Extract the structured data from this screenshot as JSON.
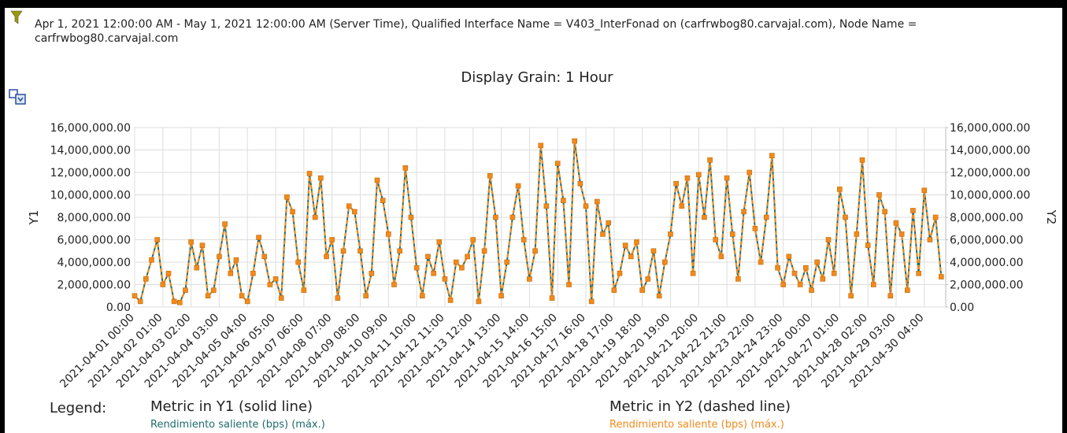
{
  "header": {
    "filter": "Apr 1, 2021 12:00:00 AM - May 1, 2021 12:00:00 AM (Server Time), Qualified Interface Name = V403_InterFonad on (carfrwbog80.carvajal.com), Node Name = carfrwbog80.carvajal.com"
  },
  "chart_data": {
    "type": "line",
    "title": "Display Grain: 1 Hour",
    "y_label": "Y1",
    "y2_label": "Y2",
    "legend": {
      "title": "Legend:",
      "headings": [
        "Metric in Y1 (solid line)",
        "Metric in Y2 (dashed line)"
      ]
    },
    "x": [
      "2021-04-01 00:00",
      "2021-04-01 05:00",
      "2021-04-01 10:00",
      "2021-04-01 15:00",
      "2021-04-01 20:00",
      "2021-04-02 01:00",
      "2021-04-02 06:00",
      "2021-04-02 11:00",
      "2021-04-02 16:00",
      "2021-04-02 21:00",
      "2021-04-03 02:00",
      "2021-04-03 07:00",
      "2021-04-03 12:00",
      "2021-04-03 17:00",
      "2021-04-03 22:00",
      "2021-04-04 03:00",
      "2021-04-04 08:00",
      "2021-04-04 13:00",
      "2021-04-04 18:00",
      "2021-04-04 23:00",
      "2021-04-05 04:00",
      "2021-04-05 09:00",
      "2021-04-05 14:00",
      "2021-04-05 19:00",
      "2021-04-06 00:00",
      "2021-04-06 05:00",
      "2021-04-06 10:00",
      "2021-04-06 15:00",
      "2021-04-06 20:00",
      "2021-04-07 01:00",
      "2021-04-07 06:00",
      "2021-04-07 11:00",
      "2021-04-07 16:00",
      "2021-04-07 21:00",
      "2021-04-08 02:00",
      "2021-04-08 07:00",
      "2021-04-08 12:00",
      "2021-04-08 17:00",
      "2021-04-08 22:00",
      "2021-04-09 03:00",
      "2021-04-09 08:00",
      "2021-04-09 13:00",
      "2021-04-09 18:00",
      "2021-04-09 23:00",
      "2021-04-10 04:00",
      "2021-04-10 09:00",
      "2021-04-10 14:00",
      "2021-04-10 19:00",
      "2021-04-11 00:00",
      "2021-04-11 05:00",
      "2021-04-11 10:00",
      "2021-04-11 15:00",
      "2021-04-11 20:00",
      "2021-04-12 01:00",
      "2021-04-12 06:00",
      "2021-04-12 11:00",
      "2021-04-12 16:00",
      "2021-04-12 21:00",
      "2021-04-13 02:00",
      "2021-04-13 07:00",
      "2021-04-13 12:00",
      "2021-04-13 17:00",
      "2021-04-13 22:00",
      "2021-04-14 03:00",
      "2021-04-14 08:00",
      "2021-04-14 13:00",
      "2021-04-14 18:00",
      "2021-04-14 23:00",
      "2021-04-15 04:00",
      "2021-04-15 09:00",
      "2021-04-15 14:00",
      "2021-04-15 19:00",
      "2021-04-16 00:00",
      "2021-04-16 05:00",
      "2021-04-16 10:00",
      "2021-04-16 15:00",
      "2021-04-16 20:00",
      "2021-04-17 01:00",
      "2021-04-17 06:00",
      "2021-04-17 11:00",
      "2021-04-17 16:00",
      "2021-04-17 21:00",
      "2021-04-18 02:00",
      "2021-04-18 07:00",
      "2021-04-18 12:00",
      "2021-04-18 17:00",
      "2021-04-18 22:00",
      "2021-04-19 03:00",
      "2021-04-19 08:00",
      "2021-04-19 13:00",
      "2021-04-19 18:00",
      "2021-04-19 23:00",
      "2021-04-20 04:00",
      "2021-04-20 09:00",
      "2021-04-20 14:00",
      "2021-04-20 19:00",
      "2021-04-21 00:00",
      "2021-04-21 05:00",
      "2021-04-21 10:00",
      "2021-04-21 15:00",
      "2021-04-21 20:00",
      "2021-04-22 01:00",
      "2021-04-22 06:00",
      "2021-04-22 11:00",
      "2021-04-22 16:00",
      "2021-04-22 21:00",
      "2021-04-23 02:00",
      "2021-04-23 07:00",
      "2021-04-23 12:00",
      "2021-04-23 17:00",
      "2021-04-23 22:00",
      "2021-04-24 03:00",
      "2021-04-24 08:00",
      "2021-04-24 13:00",
      "2021-04-24 18:00",
      "2021-04-24 23:00",
      "2021-04-25 04:00",
      "2021-04-25 09:00",
      "2021-04-25 14:00",
      "2021-04-25 19:00",
      "2021-04-26 00:00",
      "2021-04-26 05:00",
      "2021-04-26 10:00",
      "2021-04-26 15:00",
      "2021-04-26 20:00",
      "2021-04-27 01:00",
      "2021-04-27 06:00",
      "2021-04-27 11:00",
      "2021-04-27 16:00",
      "2021-04-27 21:00",
      "2021-04-28 02:00",
      "2021-04-28 07:00",
      "2021-04-28 12:00",
      "2021-04-28 17:00",
      "2021-04-28 22:00",
      "2021-04-29 03:00",
      "2021-04-29 08:00",
      "2021-04-29 13:00",
      "2021-04-29 18:00",
      "2021-04-29 23:00",
      "2021-04-30 04:00",
      "2021-04-30 09:00",
      "2021-04-30 14:00",
      "2021-04-30 19:00"
    ],
    "series": [
      {
        "name": "Rendimiento saliente (bps) (máx.)",
        "color": "#1f6b6b",
        "axis": "y",
        "dashed": false,
        "markers": false,
        "values": [
          1000000,
          500000,
          2500000,
          4200000,
          6000000,
          2000000,
          3000000,
          500000,
          400000,
          1500000,
          5800000,
          3500000,
          5500000,
          1000000,
          1500000,
          4500000,
          7400000,
          3000000,
          4200000,
          1000000,
          500000,
          3000000,
          6200000,
          4500000,
          2000000,
          2500000,
          800000,
          9800000,
          8500000,
          4000000,
          1500000,
          11900000,
          8000000,
          11500000,
          4500000,
          6000000,
          800000,
          5000000,
          9000000,
          8500000,
          5000000,
          1000000,
          3000000,
          11300000,
          9500000,
          6500000,
          2000000,
          5000000,
          12400000,
          8000000,
          3500000,
          1000000,
          4500000,
          3000000,
          5800000,
          2500000,
          600000,
          4000000,
          3500000,
          4500000,
          6000000,
          500000,
          5000000,
          11700000,
          8000000,
          1000000,
          4000000,
          8000000,
          10800000,
          6000000,
          2500000,
          5000000,
          14400000,
          9000000,
          800000,
          12800000,
          9500000,
          2000000,
          14800000,
          11000000,
          9000000,
          500000,
          9400000,
          6500000,
          7500000,
          1500000,
          3000000,
          5500000,
          4500000,
          5800000,
          1500000,
          2500000,
          5000000,
          1000000,
          4000000,
          6500000,
          11000000,
          9000000,
          11500000,
          3000000,
          11800000,
          8000000,
          13100000,
          6000000,
          4500000,
          11500000,
          6500000,
          2500000,
          8500000,
          12000000,
          7000000,
          4000000,
          8000000,
          13500000,
          3500000,
          2000000,
          4500000,
          3000000,
          2000000,
          3500000,
          1500000,
          4000000,
          2500000,
          6000000,
          3000000,
          10500000,
          8000000,
          1000000,
          6500000,
          13100000,
          5500000,
          2000000,
          10000000,
          8500000,
          1000000,
          7500000,
          6500000,
          1500000,
          8600000,
          3000000,
          10400000,
          6000000,
          8000000,
          2700000
        ]
      },
      {
        "name": "Rendimiento saliente (bps) (máx.)",
        "color": "#f28a1a",
        "axis": "y2",
        "dashed": true,
        "markers": true,
        "values": [
          1000000,
          500000,
          2500000,
          4200000,
          6000000,
          2000000,
          3000000,
          500000,
          400000,
          1500000,
          5800000,
          3500000,
          5500000,
          1000000,
          1500000,
          4500000,
          7400000,
          3000000,
          4200000,
          1000000,
          500000,
          3000000,
          6200000,
          4500000,
          2000000,
          2500000,
          800000,
          9800000,
          8500000,
          4000000,
          1500000,
          11900000,
          8000000,
          11500000,
          4500000,
          6000000,
          800000,
          5000000,
          9000000,
          8500000,
          5000000,
          1000000,
          3000000,
          11300000,
          9500000,
          6500000,
          2000000,
          5000000,
          12400000,
          8000000,
          3500000,
          1000000,
          4500000,
          3000000,
          5800000,
          2500000,
          600000,
          4000000,
          3500000,
          4500000,
          6000000,
          500000,
          5000000,
          11700000,
          8000000,
          1000000,
          4000000,
          8000000,
          10800000,
          6000000,
          2500000,
          5000000,
          14400000,
          9000000,
          800000,
          12800000,
          9500000,
          2000000,
          14800000,
          11000000,
          9000000,
          500000,
          9400000,
          6500000,
          7500000,
          1500000,
          3000000,
          5500000,
          4500000,
          5800000,
          1500000,
          2500000,
          5000000,
          1000000,
          4000000,
          6500000,
          11000000,
          9000000,
          11500000,
          3000000,
          11800000,
          8000000,
          13100000,
          6000000,
          4500000,
          11500000,
          6500000,
          2500000,
          8500000,
          12000000,
          7000000,
          4000000,
          8000000,
          13500000,
          3500000,
          2000000,
          4500000,
          3000000,
          2000000,
          3500000,
          1500000,
          4000000,
          2500000,
          6000000,
          3000000,
          10500000,
          8000000,
          1000000,
          6500000,
          13100000,
          5500000,
          2000000,
          10000000,
          8500000,
          1000000,
          7500000,
          6500000,
          1500000,
          8600000,
          3000000,
          10400000,
          6000000,
          8000000,
          2700000
        ]
      }
    ],
    "xlim": [
      "2021-04-01 00:00",
      "2021-04-30 23:00"
    ],
    "xticks": [
      "2021-04-01 00:00",
      "2021-04-02 01:00",
      "2021-04-03 02:00",
      "2021-04-04 03:00",
      "2021-04-05 04:00",
      "2021-04-06 05:00",
      "2021-04-07 06:00",
      "2021-04-08 07:00",
      "2021-04-09 08:00",
      "2021-04-10 09:00",
      "2021-04-11 10:00",
      "2021-04-12 11:00",
      "2021-04-13 12:00",
      "2021-04-14 13:00",
      "2021-04-15 14:00",
      "2021-04-16 15:00",
      "2021-04-17 16:00",
      "2021-04-18 17:00",
      "2021-04-19 18:00",
      "2021-04-20 19:00",
      "2021-04-21 20:00",
      "2021-04-22 21:00",
      "2021-04-23 22:00",
      "2021-04-24 23:00",
      "2021-04-26 00:00",
      "2021-04-27 01:00",
      "2021-04-28 02:00",
      "2021-04-29 03:00",
      "2021-04-30 04:00"
    ],
    "ylim": [
      0,
      16000000
    ],
    "yticks": [
      {
        "value": 0,
        "label": "0.00"
      },
      {
        "value": 2000000,
        "label": "2,000,000.00"
      },
      {
        "value": 4000000,
        "label": "4,000,000.00"
      },
      {
        "value": 6000000,
        "label": "6,000,000.00"
      },
      {
        "value": 8000000,
        "label": "8,000,000.00"
      },
      {
        "value": 10000000,
        "label": "10,000,000.00"
      },
      {
        "value": 12000000,
        "label": "12,000,000.00"
      },
      {
        "value": 14000000,
        "label": "14,000,000.00"
      },
      {
        "value": 16000000,
        "label": "16,000,000.00"
      }
    ],
    "y2lim": [
      0,
      16000000
    ],
    "y2ticks": [
      {
        "value": 0,
        "label": "0.00"
      },
      {
        "value": 2000000,
        "label": "2,000,000.00"
      },
      {
        "value": 4000000,
        "label": "4,000,000.00"
      },
      {
        "value": 6000000,
        "label": "6,000,000.00"
      },
      {
        "value": 8000000,
        "label": "8,000,000.00"
      },
      {
        "value": 10000000,
        "label": "10,000,000.00"
      },
      {
        "value": 12000000,
        "label": "12,000,000.00"
      },
      {
        "value": 14000000,
        "label": "14,000,000.00"
      },
      {
        "value": 16000000,
        "label": "16,000,000.00"
      }
    ],
    "grid": true
  }
}
